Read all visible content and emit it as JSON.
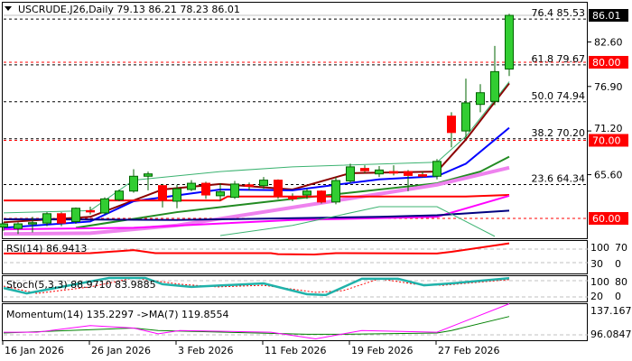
{
  "header": {
    "symbol_line": "USCRUDE.J26,Daily  79.13 86.21 78.23 86.01"
  },
  "chart_data": {
    "type": "candlestick",
    "symbol": "USCRUDE.J26",
    "timeframe": "Daily",
    "ohlc_readout": [
      79.13,
      86.21,
      78.23,
      86.01
    ],
    "current_price": "86.01",
    "ylim": [
      57.2,
      88.0
    ],
    "colors": {
      "up": "#32cd32",
      "down": "#ff0000",
      "wick": "#006400",
      "level_red": "#ff0000",
      "price_box": "#000000"
    },
    "candles": [
      [
        58.9,
        59.5,
        58.4,
        59.3
      ],
      [
        58.7,
        59.5,
        58.0,
        59.3
      ],
      [
        59.4,
        60.2,
        58.2,
        59.45
      ],
      [
        59.4,
        60.8,
        59.0,
        60.6
      ],
      [
        60.6,
        60.8,
        59.0,
        59.4
      ],
      [
        59.6,
        61.4,
        59.3,
        61.3
      ],
      [
        61.0,
        61.5,
        60.5,
        60.9
      ],
      [
        60.7,
        62.7,
        60.5,
        62.5
      ],
      [
        62.4,
        63.7,
        62.2,
        63.5
      ],
      [
        63.5,
        66.3,
        63.3,
        65.4
      ],
      [
        65.4,
        66.0,
        63.6,
        65.7
      ],
      [
        64.2,
        64.4,
        61.4,
        62.3
      ],
      [
        62.2,
        64.3,
        61.3,
        63.8
      ],
      [
        63.7,
        64.9,
        63.5,
        64.5
      ],
      [
        64.5,
        64.7,
        62.5,
        63.0
      ],
      [
        62.9,
        64.5,
        62.3,
        63.4
      ],
      [
        62.7,
        64.8,
        62.5,
        64.4
      ],
      [
        64.3,
        64.6,
        63.6,
        64.1
      ],
      [
        64.2,
        65.3,
        63.8,
        64.9
      ],
      [
        64.9,
        65.0,
        62.5,
        62.8
      ],
      [
        62.8,
        63.2,
        62.2,
        62.5
      ],
      [
        63.0,
        63.8,
        62.5,
        63.5
      ],
      [
        63.5,
        63.6,
        61.9,
        62.1
      ],
      [
        62.1,
        65.3,
        61.8,
        64.85
      ],
      [
        64.8,
        67.0,
        64.5,
        66.6
      ],
      [
        66.4,
        66.8,
        65.8,
        66.1
      ],
      [
        65.7,
        66.7,
        65.3,
        66.2
      ],
      [
        66.0,
        66.8,
        65.5,
        65.8
      ],
      [
        66.0,
        66.2,
        63.5,
        65.5
      ],
      [
        65.6,
        66.0,
        65.2,
        65.4
      ],
      [
        65.4,
        67.6,
        65.0,
        67.3
      ],
      [
        73.1,
        73.6,
        69.1,
        71.0
      ],
      [
        71.2,
        77.9,
        70.3,
        74.8
      ],
      [
        74.6,
        77.2,
        73.6,
        76.1
      ],
      [
        75.0,
        82.1,
        74.5,
        78.8
      ],
      [
        79.13,
        86.21,
        78.23,
        86.01
      ]
    ],
    "x_tick_labels": [
      {
        "index": 0,
        "label": "16 Jan 2026"
      },
      {
        "index": 6,
        "label": "26 Jan 2026"
      },
      {
        "index": 12,
        "label": "3 Feb 2026"
      },
      {
        "index": 18,
        "label": "11 Feb 2026"
      },
      {
        "index": 24,
        "label": "19 Feb 2026"
      },
      {
        "index": 30,
        "label": "27 Feb 2026"
      }
    ],
    "y_tick_labels": [
      "82.60",
      "76.90",
      "71.20",
      "65.60"
    ],
    "price_levels": [
      {
        "value": 80.0,
        "label": "80.00"
      },
      {
        "value": 70.0,
        "label": "70.00"
      },
      {
        "value": 60.0,
        "label": "60.00"
      }
    ],
    "fibonacci": [
      {
        "ratio": "76.4",
        "value": 85.53,
        "label": "76.4 85.53"
      },
      {
        "ratio": "61.8",
        "value": 79.67,
        "label": "61.8 79.67"
      },
      {
        "ratio": "50.0",
        "value": 74.94,
        "label": "50.0 74.94"
      },
      {
        "ratio": "38.2",
        "value": 70.2,
        "label": "38.2 70.20"
      },
      {
        "ratio": "23.6",
        "value": 64.34,
        "label": "23.6 64.34"
      }
    ],
    "moving_averages": [
      {
        "name": "ma-dark-red",
        "color": "#8b0000",
        "width": 2,
        "points": [
          [
            0,
            59.5
          ],
          [
            6,
            60.2
          ],
          [
            9,
            62.3
          ],
          [
            11,
            63.7
          ],
          [
            15,
            64.4
          ],
          [
            20,
            63.7
          ],
          [
            24,
            65.8
          ],
          [
            30,
            66.0
          ],
          [
            32,
            70.1
          ],
          [
            35,
            77.3
          ]
        ]
      },
      {
        "name": "ma-blue",
        "color": "#0000ff",
        "width": 2,
        "points": [
          [
            0,
            58.8
          ],
          [
            6,
            59.6
          ],
          [
            9,
            62.2
          ],
          [
            15,
            63.7
          ],
          [
            20,
            63.6
          ],
          [
            26,
            65.0
          ],
          [
            30,
            65.4
          ],
          [
            32,
            67.0
          ],
          [
            35,
            71.6
          ]
        ]
      },
      {
        "name": "ma-green",
        "color": "#228b22",
        "width": 2,
        "points": [
          [
            5,
            58.8
          ],
          [
            12,
            60.8
          ],
          [
            20,
            62.5
          ],
          [
            30,
            64.5
          ],
          [
            33,
            66.0
          ],
          [
            35,
            67.9
          ]
        ]
      },
      {
        "name": "ma-violet",
        "color": "#ee82ee",
        "width": 4,
        "points": [
          [
            0,
            58.0
          ],
          [
            6,
            58.1
          ],
          [
            12,
            59.1
          ],
          [
            20,
            61.4
          ],
          [
            30,
            64.3
          ],
          [
            35,
            66.5
          ]
        ]
      },
      {
        "name": "ma-red",
        "color": "#ff0000",
        "width": 2,
        "points": [
          [
            0,
            62.3
          ],
          [
            15,
            62.3
          ],
          [
            15.5,
            62.8
          ],
          [
            32,
            62.8
          ],
          [
            35,
            63.0
          ]
        ]
      },
      {
        "name": "ma-magenta",
        "color": "#ff00ff",
        "width": 2,
        "points": [
          [
            0,
            58.6
          ],
          [
            9,
            58.8
          ],
          [
            20,
            59.8
          ],
          [
            30,
            60.2
          ],
          [
            35,
            62.9
          ]
        ]
      },
      {
        "name": "ma-navy",
        "color": "#000080",
        "width": 2,
        "points": [
          [
            0,
            59.9
          ],
          [
            12,
            59.8
          ],
          [
            26,
            60.2
          ],
          [
            30,
            60.4
          ],
          [
            35,
            61.0
          ]
        ]
      },
      {
        "name": "envelope-upper",
        "color": "#3cb371",
        "width": 1,
        "points": [
          [
            0,
            60.7
          ],
          [
            6,
            61.0
          ],
          [
            9,
            64.9
          ],
          [
            15,
            66.0
          ],
          [
            20,
            66.6
          ],
          [
            30,
            67.2
          ],
          [
            32,
            70.5
          ],
          [
            35,
            77.5
          ]
        ]
      },
      {
        "name": "envelope-lower",
        "color": "#3cb371",
        "width": 1,
        "points": [
          [
            15,
            57.8
          ],
          [
            20,
            59.1
          ],
          [
            26,
            61.5
          ],
          [
            30,
            61.5
          ],
          [
            34,
            57.7
          ]
        ]
      }
    ],
    "indicators": {
      "rsi": {
        "label": "RSI(14) 86.9413",
        "scale_labels": [
          "100",
          "70",
          "30",
          "0"
        ],
        "levels": [
          70,
          30
        ],
        "color": "#ff0000",
        "points": [
          [
            0,
            57
          ],
          [
            6,
            58
          ],
          [
            9,
            67
          ],
          [
            10.5,
            58
          ],
          [
            18.5,
            58
          ],
          [
            19,
            55
          ],
          [
            21.5,
            54
          ],
          [
            23,
            58
          ],
          [
            30,
            57
          ],
          [
            31,
            62
          ],
          [
            35,
            87
          ]
        ]
      },
      "stoch": {
        "label": "Stoch(5,3,3) 88.9710 83.9885",
        "scale_labels": [
          "100",
          "80",
          "20",
          "0"
        ],
        "levels": [
          80,
          20
        ],
        "main_color": "#20b2aa",
        "signal_color": "#ff0000",
        "main": [
          [
            0,
            53
          ],
          [
            1.6,
            33
          ],
          [
            6,
            77
          ],
          [
            7.3,
            90
          ],
          [
            9.8,
            90
          ],
          [
            11,
            67
          ],
          [
            13,
            57
          ],
          [
            18,
            70
          ],
          [
            21,
            30
          ],
          [
            22.3,
            27
          ],
          [
            24.8,
            87
          ],
          [
            27.3,
            87
          ],
          [
            29.1,
            63
          ],
          [
            31,
            70
          ],
          [
            35,
            89
          ]
        ],
        "signal": [
          [
            0,
            60
          ],
          [
            2.3,
            33
          ],
          [
            6,
            57
          ],
          [
            9,
            90
          ],
          [
            12.2,
            67
          ],
          [
            14.8,
            57
          ],
          [
            18,
            63
          ],
          [
            21.6,
            37
          ],
          [
            23.5,
            43
          ],
          [
            26,
            87
          ],
          [
            28.5,
            67
          ],
          [
            30.4,
            63
          ],
          [
            35,
            84
          ]
        ]
      },
      "momentum": {
        "label": "Momentum(14) 135.2297  ->MA(7) 119.8554",
        "scale_labels": [
          "137.167",
          "96.0847"
        ],
        "level": 100,
        "color": "#ff00ff",
        "ma_color": "#008000",
        "points": [
          [
            0,
            101
          ],
          [
            2.3,
            101
          ],
          [
            6,
            109
          ],
          [
            9,
            106
          ],
          [
            10.7,
            99
          ],
          [
            12.2,
            103
          ],
          [
            18.5,
            101
          ],
          [
            21.6,
            93
          ],
          [
            24.8,
            103
          ],
          [
            30,
            101
          ],
          [
            35,
            135.2
          ]
        ],
        "ma": [
          [
            0,
            100
          ],
          [
            9,
            106
          ],
          [
            10.7,
            103
          ],
          [
            21,
            98.5
          ],
          [
            23.5,
            98.5
          ],
          [
            30,
            100
          ],
          [
            31,
            103
          ],
          [
            35,
            119.9
          ]
        ]
      }
    }
  }
}
